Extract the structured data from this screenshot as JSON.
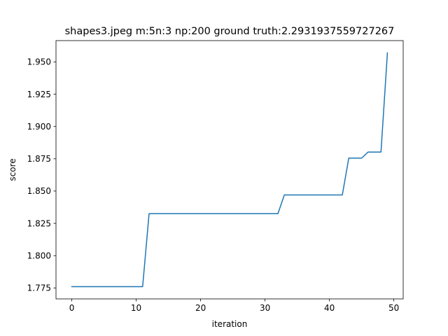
{
  "chart_data": {
    "type": "line",
    "title": "shapes3.jpeg m:5n:3 np:200 ground truth:2.2931937559727267",
    "xlabel": "iteration",
    "ylabel": "score",
    "xlim": [
      -2.45,
      51.45
    ],
    "ylim": [
      1.7665,
      1.9665
    ],
    "x_ticks": [
      0,
      10,
      20,
      30,
      40,
      50
    ],
    "x_tick_labels": [
      "0",
      "10",
      "20",
      "30",
      "40",
      "50"
    ],
    "y_ticks": [
      1.775,
      1.8,
      1.825,
      1.85,
      1.875,
      1.9,
      1.925,
      1.95
    ],
    "y_tick_labels": [
      "1.775",
      "1.800",
      "1.825",
      "1.850",
      "1.875",
      "1.900",
      "1.925",
      "1.950"
    ],
    "grid": false,
    "series": [
      {
        "color": "#1f77b4",
        "x": [
          0,
          1,
          2,
          3,
          4,
          5,
          6,
          7,
          8,
          9,
          10,
          11,
          12,
          13,
          14,
          15,
          16,
          17,
          18,
          19,
          20,
          21,
          22,
          23,
          24,
          25,
          26,
          27,
          28,
          29,
          30,
          31,
          32,
          33,
          34,
          35,
          36,
          37,
          38,
          39,
          40,
          41,
          42,
          43,
          44,
          45,
          46,
          47,
          48,
          49
        ],
        "values": [
          1.776,
          1.776,
          1.776,
          1.776,
          1.776,
          1.776,
          1.776,
          1.776,
          1.776,
          1.776,
          1.776,
          1.776,
          1.8325,
          1.8325,
          1.8325,
          1.8325,
          1.8325,
          1.8325,
          1.8325,
          1.8325,
          1.8325,
          1.8325,
          1.8325,
          1.8325,
          1.8325,
          1.8325,
          1.8325,
          1.8325,
          1.8325,
          1.8325,
          1.8325,
          1.8325,
          1.8325,
          1.847,
          1.847,
          1.847,
          1.847,
          1.847,
          1.847,
          1.847,
          1.847,
          1.847,
          1.847,
          1.8755,
          1.8755,
          1.8755,
          1.8802,
          1.8802,
          1.8802,
          1.957
        ]
      }
    ]
  }
}
